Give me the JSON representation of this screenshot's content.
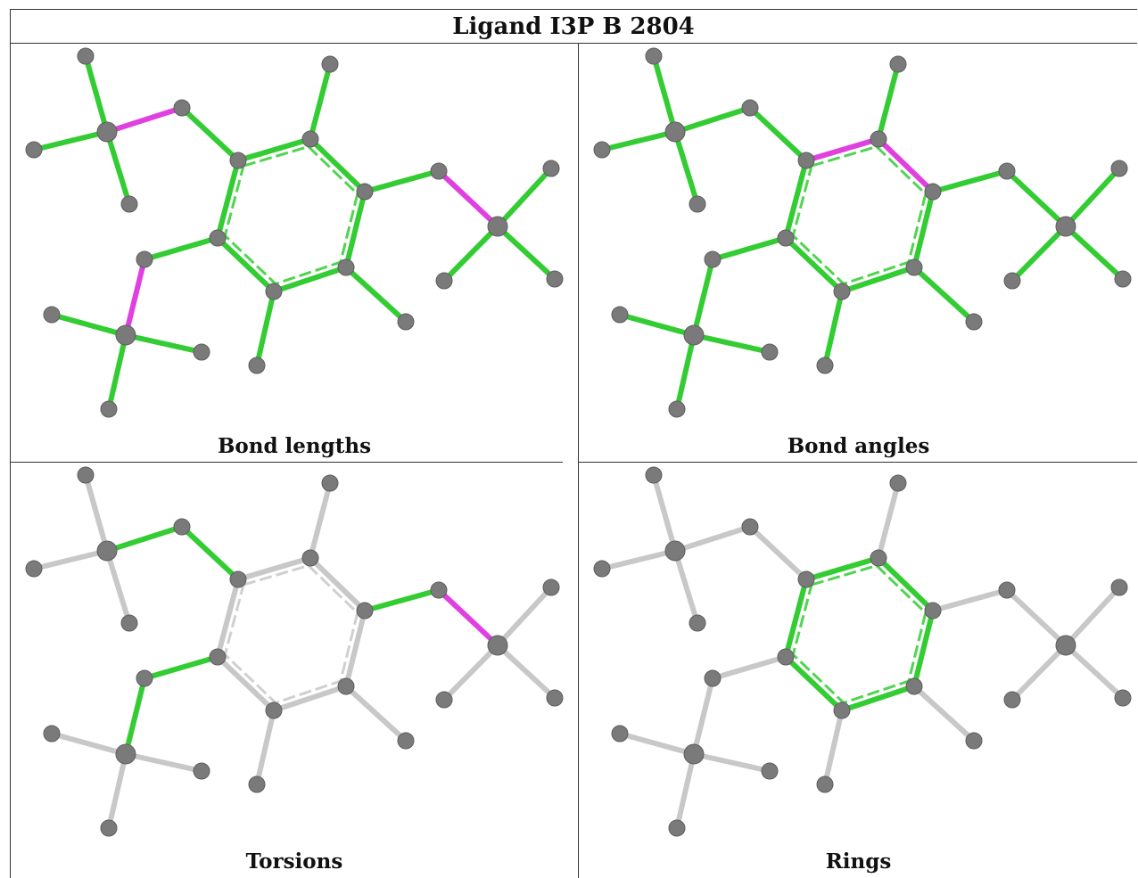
{
  "title": "Ligand I3P B 2804",
  "panels": [
    {
      "caption": "Bond lengths",
      "highlight": "bonds"
    },
    {
      "caption": "Bond angles",
      "highlight": "angle"
    },
    {
      "caption": "Torsions",
      "highlight": "torsions"
    },
    {
      "caption": "Rings",
      "highlight": "ring"
    }
  ],
  "colors": {
    "good": "#33cc33",
    "outlier": "#e040e0",
    "neutral": "#c8c8c8",
    "atom": "#7a7a7a",
    "frame": "#333333"
  }
}
